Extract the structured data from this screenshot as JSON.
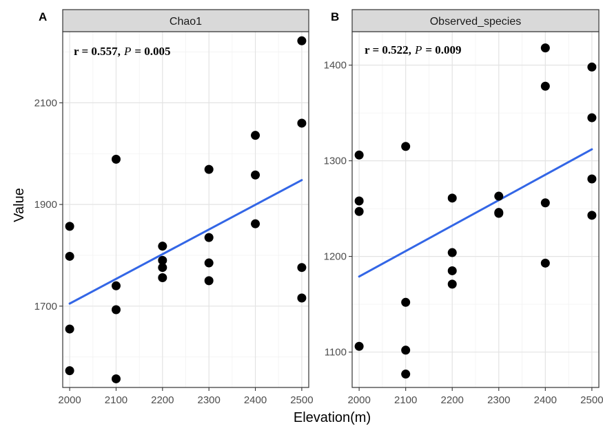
{
  "figure": {
    "xlabel": "Elevation(m)",
    "ylabel": "Value",
    "colors": {
      "point": "#000000",
      "fit_line": "#3366e6",
      "grid_major": "#e3e3e3",
      "grid_minor": "#f2f2f2",
      "strip_bg": "#d9d9d9",
      "border": "#333333"
    }
  },
  "chart_data": [
    {
      "type": "scatter",
      "panel_tag": "A",
      "strip_label": "Chao1",
      "annotation": {
        "r_text": "r = 0.557,",
        "p_symbol": "P",
        "p_text": "= 0.005"
      },
      "xlim": [
        1985,
        2515
      ],
      "ylim": [
        1540,
        2240
      ],
      "x_ticks": [
        2000,
        2100,
        2200,
        2300,
        2400,
        2500
      ],
      "y_ticks": [
        1700,
        1900,
        2100
      ],
      "points": [
        [
          2000,
          1857
        ],
        [
          2000,
          1798
        ],
        [
          2000,
          1655
        ],
        [
          2000,
          1573
        ],
        [
          2100,
          1989
        ],
        [
          2100,
          1740
        ],
        [
          2100,
          1693
        ],
        [
          2100,
          1557
        ],
        [
          2200,
          1818
        ],
        [
          2200,
          1790
        ],
        [
          2200,
          1776
        ],
        [
          2200,
          1756
        ],
        [
          2300,
          1969
        ],
        [
          2300,
          1835
        ],
        [
          2300,
          1785
        ],
        [
          2300,
          1750
        ],
        [
          2400,
          2036
        ],
        [
          2400,
          1958
        ],
        [
          2400,
          1862
        ],
        [
          2500,
          2222
        ],
        [
          2500,
          2060
        ],
        [
          2500,
          1776
        ],
        [
          2500,
          1716
        ]
      ],
      "fit": {
        "x": [
          2000,
          2500
        ],
        "y": [
          1705,
          1948
        ]
      }
    },
    {
      "type": "scatter",
      "panel_tag": "B",
      "strip_label": "Observed_species",
      "annotation": {
        "r_text": "r = 0.522,",
        "p_symbol": "P",
        "p_text": "= 0.009"
      },
      "xlim": [
        1985,
        2515
      ],
      "ylim": [
        1063,
        1435
      ],
      "x_ticks": [
        2000,
        2100,
        2200,
        2300,
        2400,
        2500
      ],
      "y_ticks": [
        1100,
        1200,
        1300,
        1400
      ],
      "points": [
        [
          2000,
          1306
        ],
        [
          2000,
          1258
        ],
        [
          2000,
          1247
        ],
        [
          2000,
          1106
        ],
        [
          2100,
          1315
        ],
        [
          2100,
          1152
        ],
        [
          2100,
          1102
        ],
        [
          2100,
          1077
        ],
        [
          2200,
          1261
        ],
        [
          2200,
          1204
        ],
        [
          2200,
          1185
        ],
        [
          2200,
          1171
        ],
        [
          2300,
          1263
        ],
        [
          2300,
          1246
        ],
        [
          2300,
          1245
        ],
        [
          2400,
          1418
        ],
        [
          2400,
          1378
        ],
        [
          2400,
          1256
        ],
        [
          2400,
          1193
        ],
        [
          2500,
          1398
        ],
        [
          2500,
          1345
        ],
        [
          2500,
          1281
        ],
        [
          2500,
          1243
        ]
      ],
      "fit": {
        "x": [
          2000,
          2500
        ],
        "y": [
          1179,
          1312
        ]
      }
    }
  ]
}
